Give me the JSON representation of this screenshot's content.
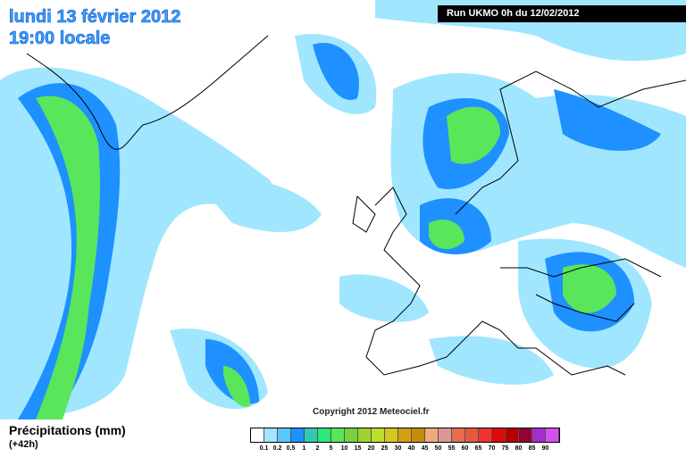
{
  "header": {
    "date": "lundi 13 février 2012",
    "time": "19:00 locale",
    "run": "Run UKMO 0h du 12/02/2012"
  },
  "copyright": "Copyright 2012 Meteociel.fr",
  "legend": {
    "title": "Précipitations (mm)",
    "lead": "(+42h)",
    "labels": [
      "0.1",
      "0.2",
      "0.5",
      "1",
      "2",
      "5",
      "10",
      "15",
      "20",
      "25",
      "30",
      "40",
      "45",
      "50",
      "55",
      "60",
      "65",
      "70",
      "75",
      "80",
      "85",
      "90"
    ],
    "colors": [
      "#ffffff",
      "#a0e6ff",
      "#5ac8ff",
      "#1e90ff",
      "#32c8b4",
      "#2ee67a",
      "#5ae65a",
      "#78d23c",
      "#9bd232",
      "#bede2d",
      "#d2c81e",
      "#d2a014",
      "#c88c0a",
      "#f0aa78",
      "#dc9696",
      "#e66e50",
      "#e65a3c",
      "#f03232",
      "#dc0a0a",
      "#b40000",
      "#960032",
      "#a030c8",
      "#d250f0"
    ]
  }
}
